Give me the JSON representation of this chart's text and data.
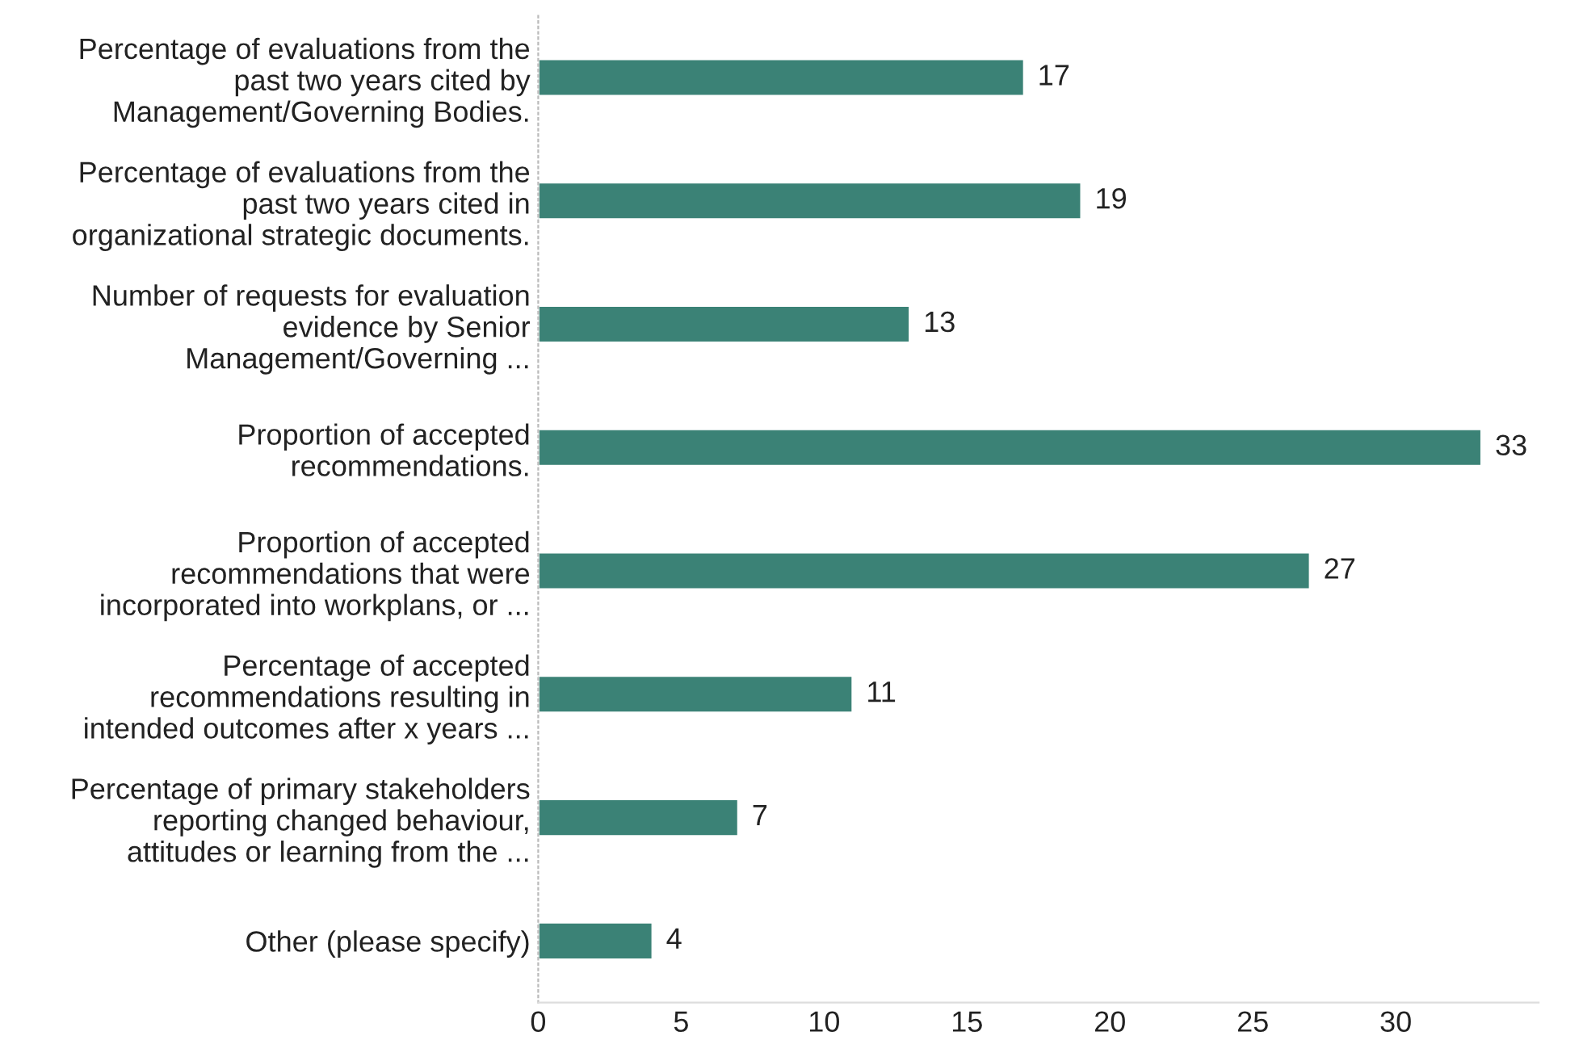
{
  "chart_data": {
    "type": "bar",
    "orientation": "horizontal",
    "categories": [
      "Percentage of evaluations from the\npast two years cited by\nManagement/Governing Bodies.",
      "Percentage of evaluations from the\npast two years cited in\norganizational strategic documents.",
      "Number of requests for evaluation\nevidence by Senior\nManagement/Governing ...",
      "Proportion of accepted\nrecommendations.",
      "Proportion of accepted\nrecommendations that were\nincorporated into workplans, or ...",
      "Percentage of accepted\nrecommendations resulting in\nintended outcomes after x years ...",
      "Percentage of primary stakeholders\nreporting changed behaviour,\nattitudes or learning from the ...",
      "Other (please specify)"
    ],
    "values": [
      17,
      19,
      13,
      33,
      27,
      11,
      7,
      4
    ],
    "color": "#3b8276",
    "xlim": [
      0,
      35
    ],
    "xticks": [
      0,
      5,
      10,
      15,
      20,
      25,
      30
    ],
    "data_labels": true,
    "grid": false
  }
}
